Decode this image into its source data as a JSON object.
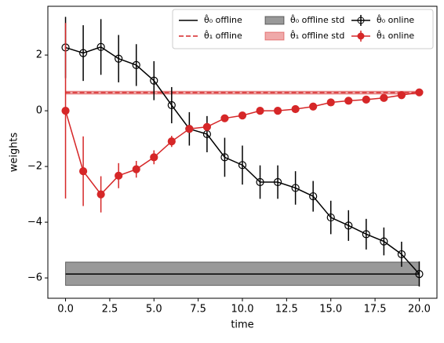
{
  "chart_data": {
    "type": "errorbar-line",
    "xlabel": "time",
    "ylabel": "weights",
    "x": [
      0,
      1,
      2,
      3,
      4,
      5,
      6,
      7,
      8,
      9,
      10,
      11,
      12,
      13,
      14,
      15,
      16,
      17,
      18,
      19,
      20
    ],
    "xlim": [
      -1,
      21
    ],
    "xticks": [
      {
        "value": 0,
        "label": "0.0"
      },
      2.5,
      {
        "value": 5,
        "label": "5.0"
      },
      7.5,
      {
        "value": 10,
        "label": "10.0"
      },
      12.5,
      {
        "value": 15,
        "label": "15.0"
      },
      17.5,
      {
        "value": 20,
        "label": "20.0"
      }
    ],
    "ylim": [
      -6.73,
      3.75
    ],
    "yticks": [
      {
        "value": -6,
        "label": "−6"
      },
      {
        "value": -4,
        "label": "−4"
      },
      {
        "value": -2,
        "label": "−2"
      },
      0,
      2
    ],
    "legend_columns": 3,
    "series": [
      {
        "name": "θ̂₀ offline",
        "kind": "line",
        "color": "#000000",
        "dashed": false,
        "x": [
          0,
          20
        ],
        "values": [
          -5.86,
          -5.86
        ]
      },
      {
        "name": "θ̂₁ offline",
        "kind": "line",
        "color": "#d62728",
        "dashed": true,
        "x": [
          0,
          20
        ],
        "values": [
          0.65,
          0.65
        ]
      },
      {
        "name": "θ̂₀ offline std",
        "kind": "band",
        "color": "#000000",
        "x": [
          0,
          20
        ],
        "lower": [
          -6.27,
          -6.27
        ],
        "upper": [
          -5.43,
          -5.43
        ]
      },
      {
        "name": "θ̂₁ offline std",
        "kind": "band",
        "color": "#d62728",
        "x": [
          0,
          20
        ],
        "lower": [
          0.6,
          0.6
        ],
        "upper": [
          0.7,
          0.7
        ]
      },
      {
        "name": "θ̂₀ online",
        "kind": "errorbar",
        "color": "#000000",
        "filled": false,
        "values": [
          2.27,
          2.07,
          2.29,
          1.87,
          1.64,
          1.08,
          0.2,
          -0.65,
          -0.84,
          -1.67,
          -1.95,
          -2.56,
          -2.56,
          -2.77,
          -3.07,
          -3.83,
          -4.12,
          -4.43,
          -4.69,
          -5.15,
          -5.86
        ],
        "errors": [
          1.1,
          1.0,
          1.0,
          0.85,
          0.75,
          0.7,
          0.65,
          0.6,
          0.65,
          0.7,
          0.7,
          0.6,
          0.6,
          0.6,
          0.55,
          0.6,
          0.55,
          0.55,
          0.5,
          0.45,
          0.45
        ]
      },
      {
        "name": "θ̂₁ online",
        "kind": "errorbar",
        "color": "#d62728",
        "filled": true,
        "values": [
          0,
          -2.17,
          -3.0,
          -2.33,
          -2.1,
          -1.67,
          -1.1,
          -0.65,
          -0.58,
          -0.27,
          -0.17,
          0.0,
          0.0,
          0.06,
          0.15,
          0.3,
          0.36,
          0.4,
          0.46,
          0.56,
          0.66
        ],
        "errors": [
          3.15,
          1.25,
          0.65,
          0.45,
          0.3,
          0.25,
          0.2,
          0.12,
          0.1,
          0.1,
          0.08,
          0.08,
          0.08,
          0.08,
          0.08,
          0.08,
          0.08,
          0.08,
          0.08,
          0.08,
          0.08
        ]
      }
    ]
  }
}
